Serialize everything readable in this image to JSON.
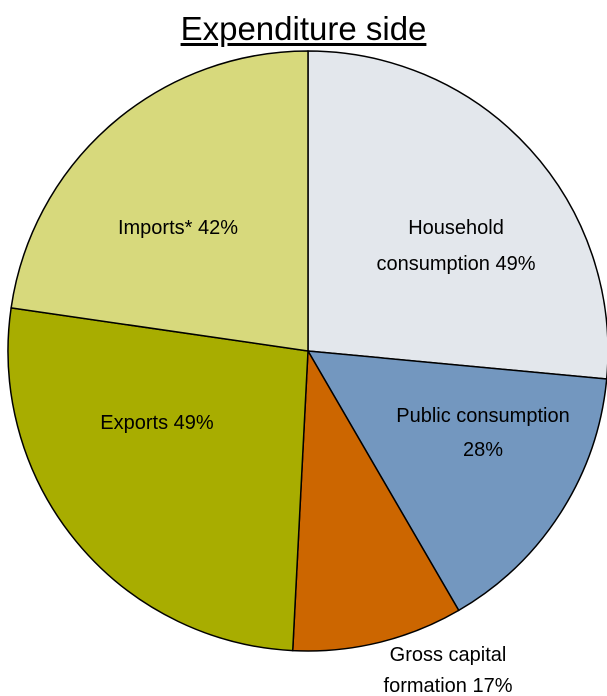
{
  "chart_data": {
    "type": "pie",
    "title": "Expenditure side",
    "slices": [
      {
        "label": [
          "Household",
          "consumption 49%"
        ],
        "value": 49,
        "color": "#e3e7ec"
      },
      {
        "label": [
          "Public consumption",
          "28%"
        ],
        "value": 28,
        "color": "#7397bf"
      },
      {
        "label": [
          "Gross capital",
          "formation 17%"
        ],
        "value": 17,
        "color": "#cc6600"
      },
      {
        "label": [
          "Exports 49%"
        ],
        "value": 49,
        "color": "#a8ad00"
      },
      {
        "label": [
          "Imports* 42%"
        ],
        "value": 42,
        "color": "#d7d97c"
      }
    ]
  }
}
